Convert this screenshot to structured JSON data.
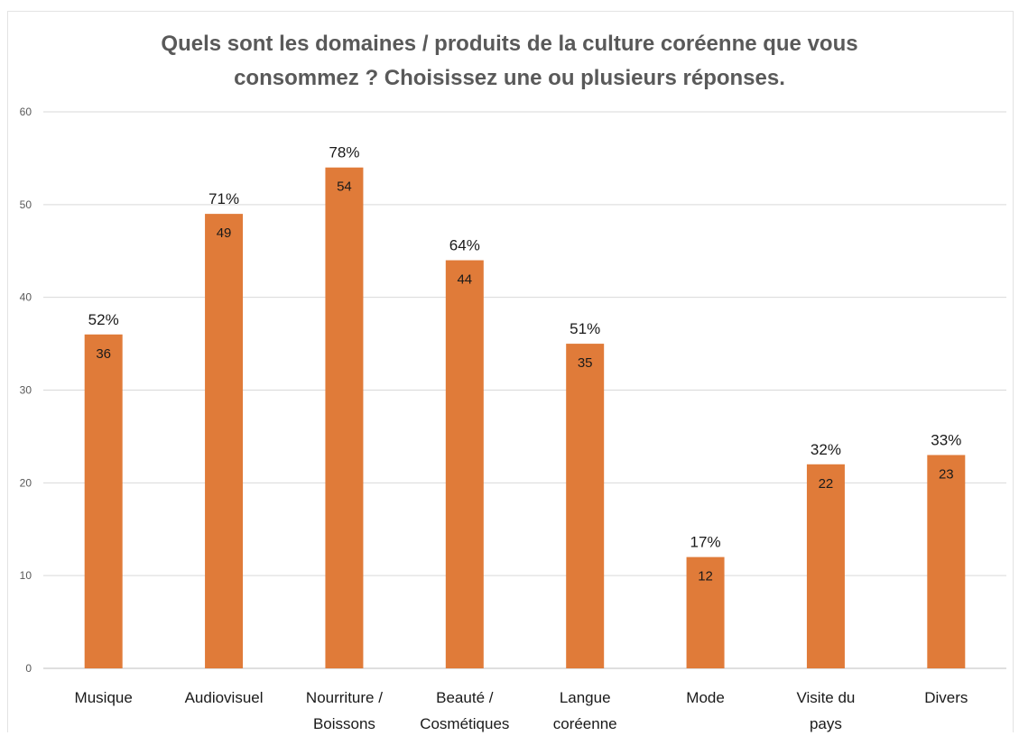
{
  "chart_data": {
    "type": "bar",
    "title_lines": [
      "Quels sont les domaines / produits de la culture coréenne que vous",
      "consommez ? Choisissez une ou plusieurs réponses."
    ],
    "categories": [
      [
        "Musique"
      ],
      [
        "Audiovisuel"
      ],
      [
        "Nourriture /",
        "Boissons"
      ],
      [
        "Beauté /",
        "Cosmétiques"
      ],
      [
        "Langue",
        "coréenne"
      ],
      [
        "Mode"
      ],
      [
        "Visite du",
        "pays"
      ],
      [
        "Divers"
      ]
    ],
    "values": [
      36,
      49,
      54,
      44,
      35,
      12,
      22,
      23
    ],
    "percent_labels": [
      "52%",
      "71%",
      "78%",
      "64%",
      "51%",
      "17%",
      "32%",
      "33%"
    ],
    "ylim": [
      0,
      60
    ],
    "yticks": [
      0,
      10,
      20,
      30,
      40,
      50,
      60
    ],
    "grid": true,
    "bar_color": "#E07B39",
    "xlabel": "",
    "ylabel": ""
  }
}
